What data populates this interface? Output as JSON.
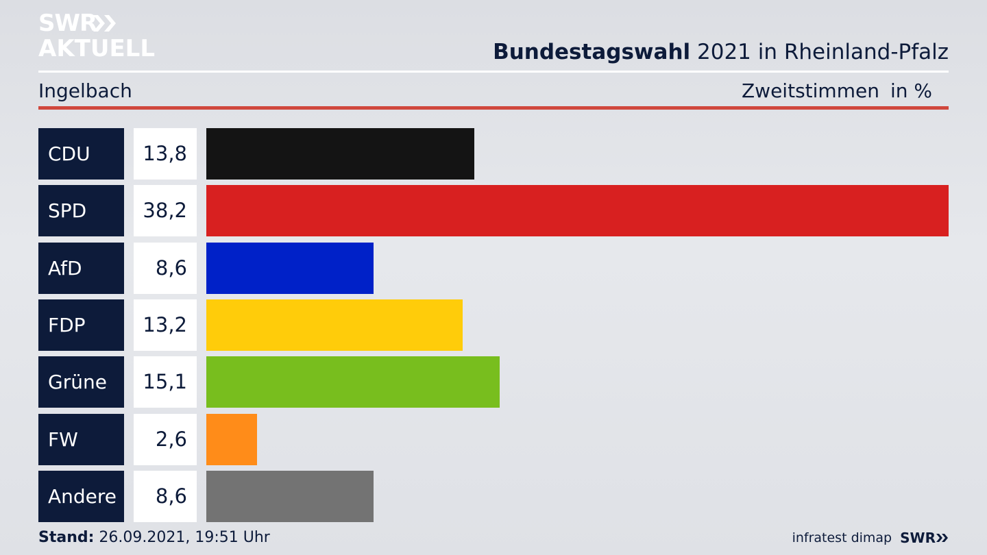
{
  "logo": {
    "line1": "SWR",
    "line2": "AKTUELL"
  },
  "header": {
    "title_strong": "Bundestagswahl",
    "title_rest": " 2021 in Rheinland-Pfalz",
    "region": "Ingelbach",
    "vote_type": "Zweitstimmen",
    "unit": "in %"
  },
  "chart_data": {
    "type": "bar",
    "orientation": "horizontal",
    "categories": [
      "CDU",
      "SPD",
      "AfD",
      "FDP",
      "Grüne",
      "FW",
      "Andere"
    ],
    "values": [
      13.8,
      38.2,
      8.6,
      13.2,
      15.1,
      2.6,
      8.6
    ],
    "value_labels": [
      "13,8",
      "38,2",
      "8,6",
      "13,2",
      "15,1",
      "2,6",
      "8,6"
    ],
    "colors": [
      "#141414",
      "#d82020",
      "#0021c8",
      "#ffcc0a",
      "#78be1e",
      "#ff8c19",
      "#737373"
    ],
    "ylabel": "in %",
    "grid": false
  },
  "footer": {
    "stand_label": "Stand:",
    "stand_value": " 26.09.2021, 19:51 Uhr",
    "source": "infratest dimap",
    "brand": "SWR"
  }
}
